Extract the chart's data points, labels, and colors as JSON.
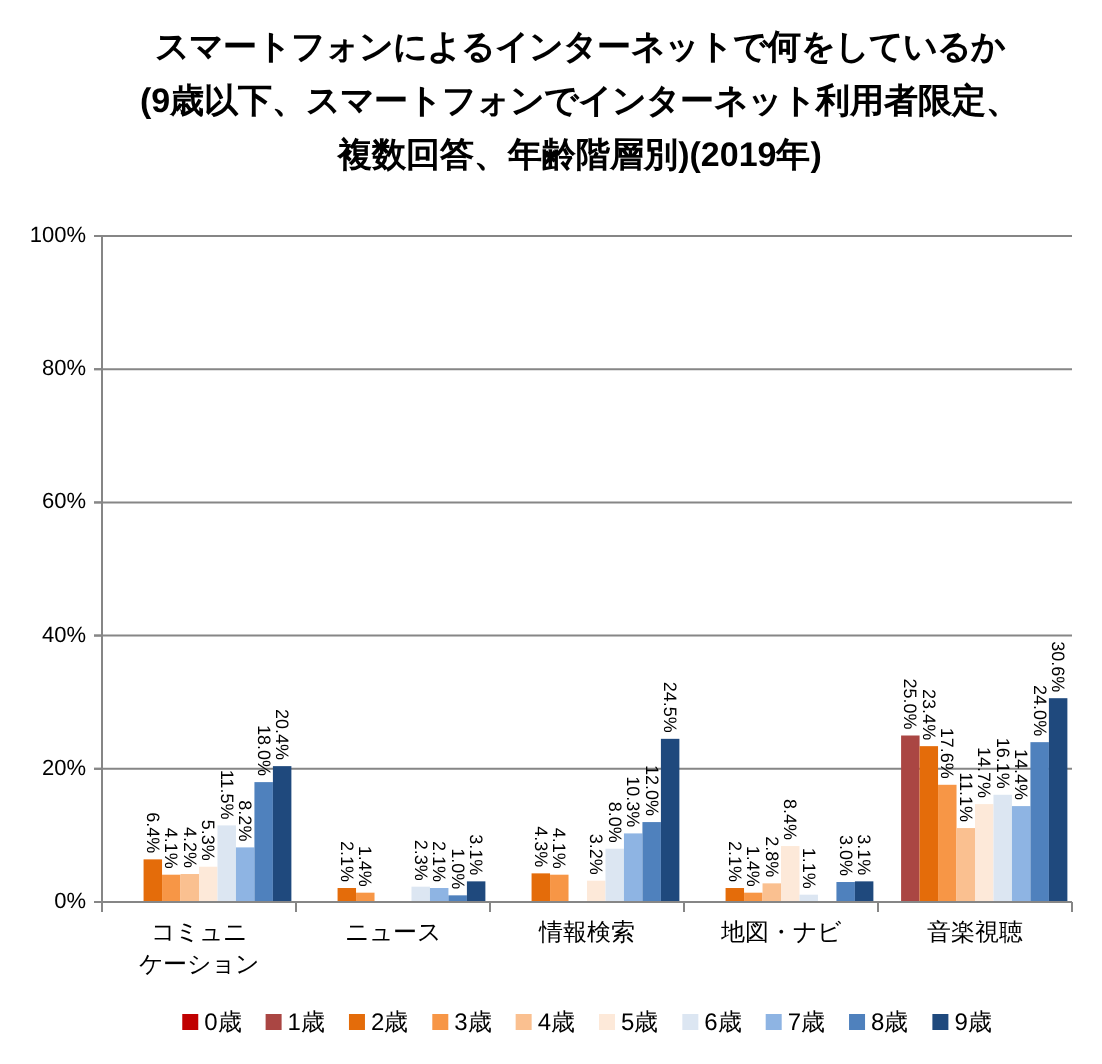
{
  "chart_data": {
    "type": "bar",
    "title": "スマートフォンによるインターネットで何をしているか(9歳以下、スマートフォンでインターネット利用者限定、複数回答、年齢階層別)(2019年)",
    "categories": [
      "コミュニケーション",
      "ニュース",
      "情報検索",
      "地図・ナビ",
      "音楽視聴"
    ],
    "series": [
      {
        "name": "0歳",
        "color": "#c00000",
        "values": [
          null,
          null,
          null,
          null,
          null
        ]
      },
      {
        "name": "1歳",
        "color": "#aa4643",
        "values": [
          null,
          null,
          null,
          null,
          25.0
        ],
        "value_labels": [
          null,
          null,
          null,
          null,
          "25.0%"
        ]
      },
      {
        "name": "2歳",
        "color": "#e46c0a",
        "values": [
          6.4,
          2.1,
          4.3,
          2.1,
          23.4
        ],
        "value_labels": [
          "6.4%",
          "2.1%",
          "4.3%",
          "2.1%",
          "23.4%"
        ]
      },
      {
        "name": "3歳",
        "color": "#f79646",
        "values": [
          4.1,
          1.4,
          4.1,
          1.4,
          17.6
        ],
        "value_labels": [
          "4.1%",
          "1.4%",
          "4.1%",
          "1.4%",
          "17.6%"
        ]
      },
      {
        "name": "4歳",
        "color": "#fac090",
        "values": [
          4.2,
          null,
          null,
          2.8,
          11.1
        ],
        "value_labels": [
          "4.2%",
          null,
          null,
          "2.8%",
          "11.1%"
        ]
      },
      {
        "name": "5歳",
        "color": "#fde9d9",
        "values": [
          5.3,
          null,
          3.2,
          8.4,
          14.7
        ],
        "value_labels": [
          "5.3%",
          null,
          "3.2%",
          "8.4%",
          "14.7%"
        ]
      },
      {
        "name": "6歳",
        "color": "#dce6f2",
        "values": [
          11.5,
          2.3,
          8.0,
          1.1,
          16.1
        ],
        "value_labels": [
          "11.5%",
          "2.3%",
          "8.0%",
          "1.1%",
          "16.1%"
        ]
      },
      {
        "name": "7歳",
        "color": "#8eb4e3",
        "values": [
          8.2,
          2.1,
          10.3,
          null,
          14.4
        ],
        "value_labels": [
          "8.2%",
          "2.1%",
          "10.3%",
          null,
          "14.4%"
        ]
      },
      {
        "name": "8歳",
        "color": "#4f81bd",
        "values": [
          18.0,
          1.0,
          12.0,
          3.0,
          24.0
        ],
        "value_labels": [
          "18.0%",
          "1.0%",
          "12.0%",
          "3.0%",
          "24.0%"
        ]
      },
      {
        "name": "9歳",
        "color": "#1f497d",
        "values": [
          20.4,
          3.1,
          24.5,
          3.1,
          30.6
        ],
        "value_labels": [
          "20.4%",
          "3.1%",
          "24.5%",
          "3.1%",
          "30.6%"
        ]
      }
    ],
    "ylim": [
      0,
      100
    ],
    "yticks": [
      {
        "value": 0,
        "label": "0%"
      },
      {
        "value": 20,
        "label": "20%"
      },
      {
        "value": 40,
        "label": "40%"
      },
      {
        "value": 60,
        "label": "60%"
      },
      {
        "value": 80,
        "label": "80%"
      },
      {
        "value": 100,
        "label": "100%"
      }
    ],
    "grid": "y",
    "legend": "bottom"
  }
}
